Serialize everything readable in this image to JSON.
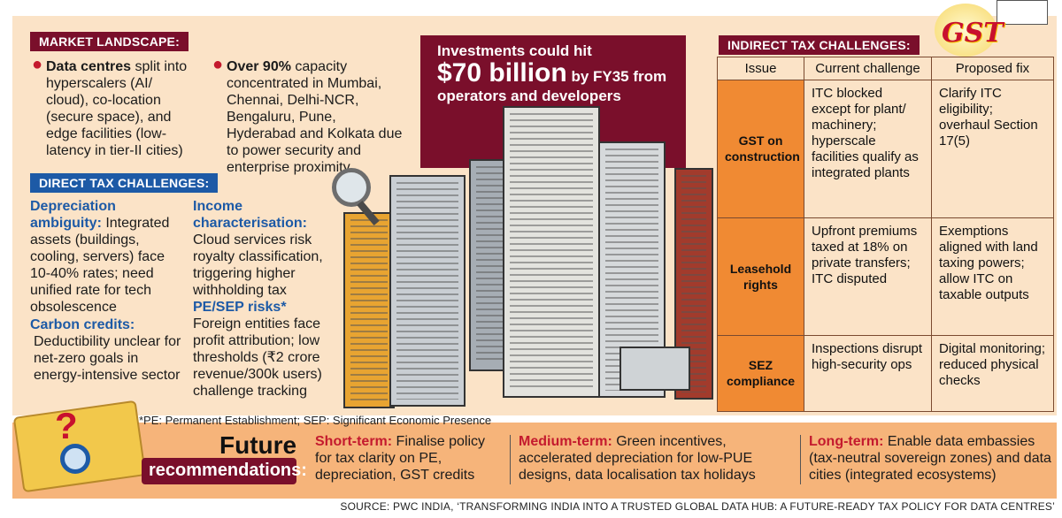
{
  "market": {
    "tag": "MARKET LANDSCAPE:",
    "col1_bold": "Data centres",
    "col1_text": " split into hyperscalers (AI/ cloud), co-location (secure space), and edge facilities (low-latency in tier-II cities)",
    "col2_bold": "Over 90%",
    "col2_text": " capacity concentrated in Mumbai, Chennai, Delhi-NCR, Bengaluru, Pune, Hyderabad and Kolkata due to power security and enterprise proximity"
  },
  "direct": {
    "tag": "DIRECT TAX CHALLENGES:",
    "depreciation_title": "Depreciation ambiguity:",
    "depreciation_text": " Integrated assets (buildings, cooling, servers) face 10-40% rates; need unified rate for tech obsolescence",
    "carbon_title": "Carbon credits:",
    "carbon_text": "Deductibility unclear for net-zero goals in energy-intensive sector",
    "income_title": "Income characterisation:",
    "income_text": " Cloud services risk royalty classification, triggering higher withholding tax",
    "pe_title": "PE/SEP risks*",
    "pe_text": "Foreign entities face profit attribution; low thresholds (₹2 crore revenue/300k users) challenge tracking"
  },
  "hero": {
    "line1": "Investments could hit",
    "big": "$70 billion",
    "line2": " by FY35 from operators and developers"
  },
  "indirect": {
    "tag": "INDIRECT TAX CHALLENGES:",
    "headers": [
      "Issue",
      "Current challenge",
      "Proposed fix"
    ],
    "rows": [
      {
        "issue": "GST on construction",
        "challenge": "ITC blocked except for plant/ machinery; hyperscale facilities qualify as integrated plants",
        "fix": "Clarify ITC eligibility; overhaul Section 17(5)"
      },
      {
        "issue": "Leasehold rights",
        "challenge": "Upfront premiums taxed at 18% on private transfers; ITC disputed",
        "fix": "Exemptions aligned with land taxing powers; allow ITC on taxable outputs"
      },
      {
        "issue": "SEZ compliance",
        "challenge": "Inspections disrupt high-security ops",
        "fix": "Digital monitoring; reduced physical checks"
      }
    ]
  },
  "logo": {
    "gst": "GST"
  },
  "footnote": "*PE: Permanent Establishment; SEP: Significant Economic Presence",
  "future": {
    "title": "Future",
    "subtitle": "recommendations:",
    "short_label": "Short-term:",
    "short_text": " Finalise policy for tax clarity on PE, depreciation, GST credits",
    "medium_label": "Medium-term:",
    "medium_text": " Green incentives, accelerated depreciation for low-PUE designs, data localisation tax holidays",
    "long_label": "Long-term:",
    "long_text": " Enable data embassies (tax-neutral sovereign zones) and data cities (integrated ecosystems)"
  },
  "source": "SOURCE: PWC INDIA, ‘TRANSFORMING INDIA INTO A TRUSTED GLOBAL DATA HUB: A FUTURE-READY TAX POLICY FOR DATA CENTRES’",
  "colors": {
    "maroon": "#7a0f2b",
    "blue": "#1d5aa6",
    "orange": "#f08a33",
    "cream": "#fbe3c7",
    "red": "#c41a2e"
  }
}
